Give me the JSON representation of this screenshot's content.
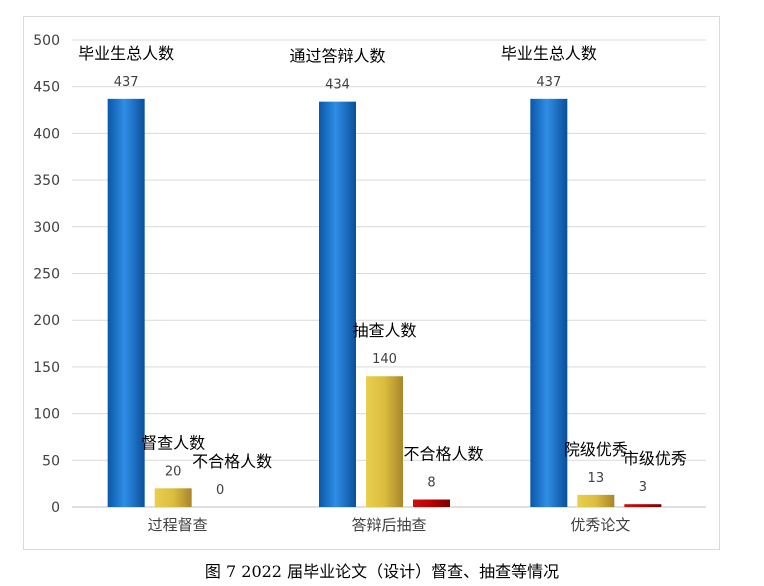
{
  "chart_data": {
    "type": "bar",
    "categories": [
      "过程督查",
      "答辩后抽查",
      "优秀论文"
    ],
    "ylim": [
      0,
      500
    ],
    "yticks": [
      0,
      50,
      100,
      150,
      200,
      250,
      300,
      350,
      400,
      450,
      500
    ],
    "grid": true,
    "groups": [
      {
        "category": "过程督查",
        "bars": [
          {
            "label": "毕业生总人数",
            "value": 437,
            "color": "blue"
          },
          {
            "label": "督查人数",
            "value": 20,
            "color": "gold"
          },
          {
            "label": "不合格人数",
            "value": 0,
            "color": "red"
          }
        ]
      },
      {
        "category": "答辩后抽查",
        "bars": [
          {
            "label": "通过答辩人数",
            "value": 434,
            "color": "blue"
          },
          {
            "label": "抽查人数",
            "value": 140,
            "color": "gold"
          },
          {
            "label": "不合格人数",
            "value": 8,
            "color": "red"
          }
        ]
      },
      {
        "category": "优秀论文",
        "bars": [
          {
            "label": "毕业生总人数",
            "value": 437,
            "color": "blue"
          },
          {
            "label": "院级优秀",
            "value": 13,
            "color": "gold"
          },
          {
            "label": "市级优秀",
            "value": 3,
            "color": "red"
          }
        ]
      }
    ],
    "colors": {
      "blue": "#1070c8",
      "gold": "#d4b13a",
      "red": "#c00000",
      "grid": "#d9d9d9",
      "text": "#404040"
    }
  },
  "caption": "图 7   2022 届毕业论文（设计）督查、抽查等情况"
}
